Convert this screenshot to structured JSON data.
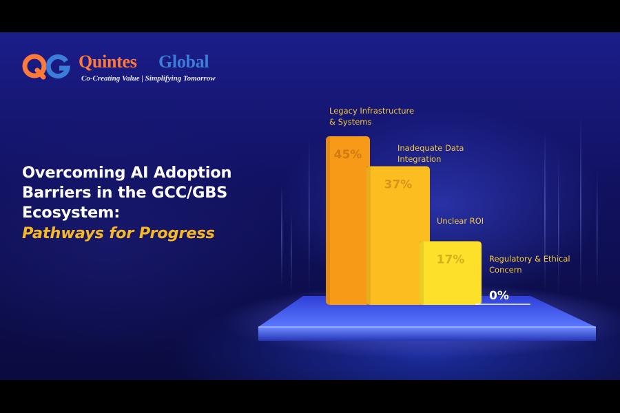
{
  "logo": {
    "brand_part1": "Quintes",
    "brand_part2": "Global",
    "tagline": "Co-Creating Value | Simplifying Tomorrow",
    "icon": "qg-monogram-icon",
    "colors": {
      "orange": "#ff7a3a",
      "blue": "#3c7dd9"
    }
  },
  "heading": {
    "line1": "Overcoming AI Adoption",
    "line2": "Barriers in the GCC/GBS",
    "line3": "Ecosystem:",
    "subtitle": "Pathways for Progress"
  },
  "colors": {
    "background": "#141570",
    "title": "#ffffff",
    "subtitle": "#f6b826",
    "bar1": "#f79a17",
    "bar2": "#fbbd1f",
    "bar3": "#fde02a",
    "label": "#f2c93a",
    "platform": "#3c5cf0"
  },
  "chart_data": {
    "type": "bar",
    "categories": [
      [
        "Legacy Infrastructure",
        "& Systems"
      ],
      [
        "Inadequate Data",
        "Integration"
      ],
      [
        "Unclear ROI"
      ],
      [
        "Regulatory & Ethical",
        "Concern"
      ]
    ],
    "values": [
      45,
      37,
      17,
      0
    ],
    "value_labels": [
      "45%",
      "37%",
      "17%",
      "0%"
    ],
    "unit": "%",
    "ylim": [
      0,
      45
    ],
    "grid": false,
    "legend": "none"
  }
}
